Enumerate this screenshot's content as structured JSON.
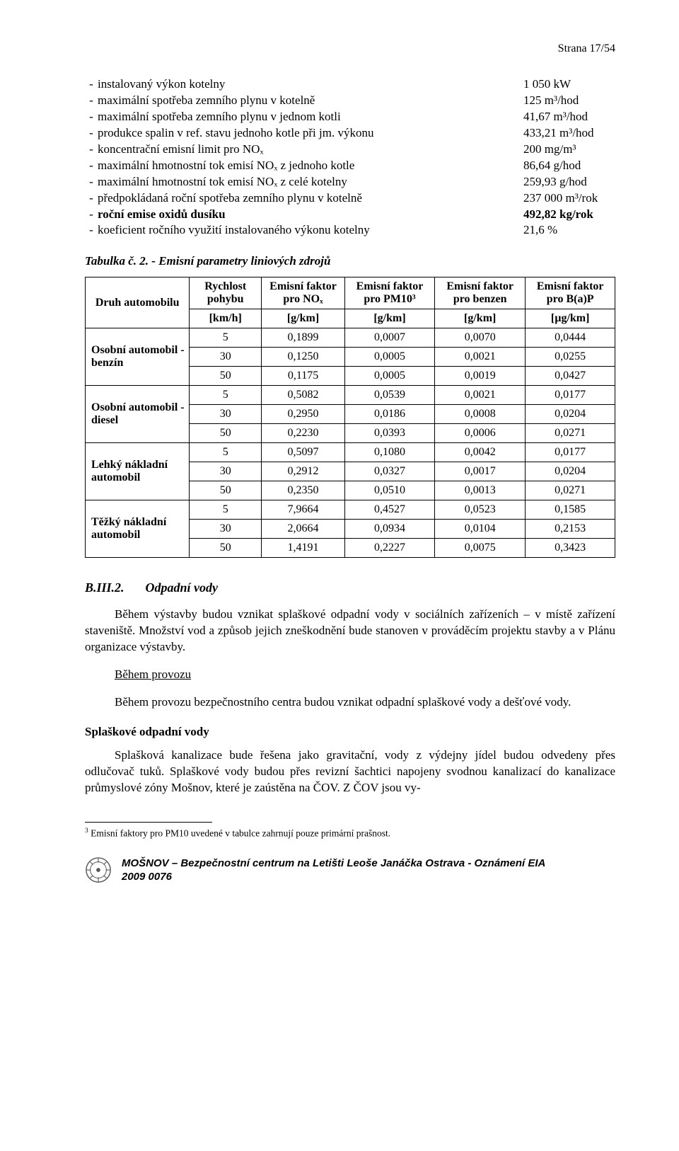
{
  "header": {
    "page_label": "Strana 17/54"
  },
  "specs": [
    {
      "label": "instalovaný výkon kotelny",
      "value": "1 050 kW",
      "bold": false
    },
    {
      "label": "maximální spotřeba zemního plynu v kotelně",
      "value": "125 m³/hod",
      "bold": false
    },
    {
      "label": "maximální spotřeba zemního plynu v jednom kotli",
      "value": "41,67 m³/hod",
      "bold": false
    },
    {
      "label": "produkce spalin v ref. stavu jednoho kotle při jm. výkonu",
      "value": "433,21 m³/hod",
      "bold": false
    },
    {
      "label": "koncentrační emisní limit pro NOₓ",
      "value": "200 mg/m³",
      "bold": false
    },
    {
      "label": "maximální hmotnostní tok emisí NOₓ z jednoho kotle",
      "value": "86,64 g/hod",
      "bold": false
    },
    {
      "label": "maximální hmotnostní tok emisí NOₓ z celé kotelny",
      "value": "259,93 g/hod",
      "bold": false
    },
    {
      "label": "předpokládaná roční spotřeba zemního plynu v kotelně",
      "value": "237 000 m³/rok",
      "bold": false
    },
    {
      "label": "roční emise oxidů dusíku",
      "value": "492,82 kg/rok",
      "bold": true
    },
    {
      "label": "koeficient ročního využití instalovaného výkonu kotelny",
      "value": "21,6 %",
      "bold": false
    }
  ],
  "table": {
    "caption": "Tabulka č. 2. -   Emisní parametry liniových zdrojů",
    "head_col0": "Druh automobilu",
    "head_cols": [
      "Rychlost pohybu",
      "Emisní faktor pro NOₓ",
      "Emisní faktor pro PM10³",
      "Emisní faktor pro benzen",
      "Emisní faktor pro B(a)P"
    ],
    "unit_row": [
      "[km/h]",
      "[g/km]",
      "[g/km]",
      "[g/km]",
      "[µg/km]"
    ],
    "groups": [
      {
        "name": "Osobní automobil - benzín",
        "rows": [
          [
            "5",
            "0,1899",
            "0,0007",
            "0,0070",
            "0,0444"
          ],
          [
            "30",
            "0,1250",
            "0,0005",
            "0,0021",
            "0,0255"
          ],
          [
            "50",
            "0,1175",
            "0,0005",
            "0,0019",
            "0,0427"
          ]
        ]
      },
      {
        "name": "Osobní automobil - diesel",
        "rows": [
          [
            "5",
            "0,5082",
            "0,0539",
            "0,0021",
            "0,0177"
          ],
          [
            "30",
            "0,2950",
            "0,0186",
            "0,0008",
            "0,0204"
          ],
          [
            "50",
            "0,2230",
            "0,0393",
            "0,0006",
            "0,0271"
          ]
        ]
      },
      {
        "name": "Lehký nákladní automobil",
        "rows": [
          [
            "5",
            "0,5097",
            "0,1080",
            "0,0042",
            "0,0177"
          ],
          [
            "30",
            "0,2912",
            "0,0327",
            "0,0017",
            "0,0204"
          ],
          [
            "50",
            "0,2350",
            "0,0510",
            "0,0013",
            "0,0271"
          ]
        ]
      },
      {
        "name": "Těžký nákladní automobil",
        "rows": [
          [
            "5",
            "7,9664",
            "0,4527",
            "0,0523",
            "0,1585"
          ],
          [
            "30",
            "2,0664",
            "0,0934",
            "0,0104",
            "0,2153"
          ],
          [
            "50",
            "1,4191",
            "0,2227",
            "0,0075",
            "0,3423"
          ]
        ]
      }
    ]
  },
  "section": {
    "num": "B.III.2.",
    "title": "Odpadní vody",
    "p1": "Během výstavby budou vznikat splaškové odpadní vody v sociálních zařízeních – v místě zařízení staveniště. Množství vod a způsob jejich zneškodnění bude stanoven v prováděcím projektu stavby a v Plánu organizace výstavby.",
    "p2_u": "Během provozu",
    "p3": "Během provozu bezpečnostního centra budou vznikat odpadní splaškové vody a dešťové vody.",
    "sub1": "Splaškové odpadní vody",
    "p4": "Splašková kanalizace bude řešena jako gravitační, vody z výdejny jídel budou odvedeny přes odlučovač tuků. Splaškové vody budou přes revizní šachtici napojeny svodnou kanalizací do kanalizace průmyslové zóny Mošnov, které je zaústěna na ČOV. Z ČOV jsou vy-"
  },
  "footnote": {
    "marker": "3",
    "text": "Emisní faktory pro PM10 uvedené v tabulce zahrnují pouze primární prašnost."
  },
  "footer": {
    "line1": "MOŠNOV – Bezpečnostní centrum na Letišti Leoše Janáčka Ostrava  - Oznámení EIA",
    "line2": "2009 0076"
  }
}
